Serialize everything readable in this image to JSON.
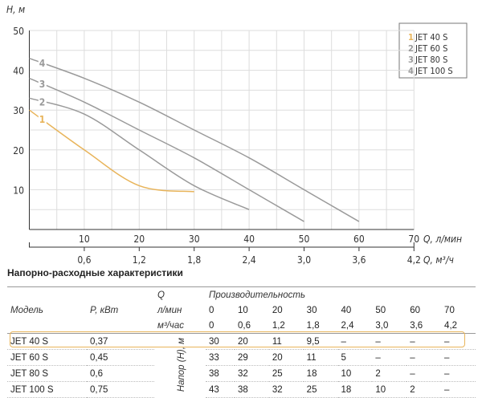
{
  "chart_data": {
    "type": "line",
    "ylabel": "H, м",
    "xlabel": "Q, л/мин",
    "x2label": "Q, м³/ч",
    "ylim": [
      0,
      50
    ],
    "xlim": [
      0,
      70
    ],
    "yticks": [
      "10",
      "20",
      "30",
      "40",
      "50"
    ],
    "xticks": [
      "10",
      "20",
      "30",
      "40",
      "50",
      "60",
      "70"
    ],
    "x2ticks": [
      "0,6",
      "1,2",
      "1,8",
      "2,4",
      "3,0",
      "3,6",
      "4,2"
    ],
    "grid": true,
    "legend_position": "top-right",
    "series": [
      {
        "name": "JET 40 S",
        "label": "1",
        "color": "#e8b45a",
        "x": [
          0,
          10,
          20,
          30
        ],
        "y": [
          30,
          20,
          11,
          9.5
        ]
      },
      {
        "name": "JET 60 S",
        "label": "2",
        "color": "#9a9a9a",
        "x": [
          0,
          10,
          20,
          30,
          40
        ],
        "y": [
          33,
          29,
          20,
          11,
          5
        ]
      },
      {
        "name": "JET 80 S",
        "label": "3",
        "color": "#9a9a9a",
        "x": [
          0,
          10,
          20,
          30,
          40,
          50
        ],
        "y": [
          38,
          32,
          25,
          18,
          10,
          2
        ]
      },
      {
        "name": "JET 100 S",
        "label": "4",
        "color": "#9a9a9a",
        "x": [
          0,
          10,
          20,
          30,
          40,
          50,
          60
        ],
        "y": [
          43,
          38,
          32,
          25,
          18,
          10,
          2
        ]
      }
    ]
  },
  "table": {
    "title": "Напорно-расходные характеристики",
    "col_model": "Модель",
    "col_power": "P, кВт",
    "q_label": "Q",
    "perf_label": "Производительность",
    "unit_lmin": "л/мин",
    "unit_m3h": "м³/час",
    "head_label": "Напор (H), м",
    "lmin": [
      "0",
      "10",
      "20",
      "30",
      "40",
      "50",
      "60",
      "70"
    ],
    "m3h": [
      "0",
      "0,6",
      "1,2",
      "1,8",
      "2,4",
      "3,0",
      "3,6",
      "4,2"
    ],
    "rows": [
      {
        "model": "JET 40 S",
        "power": "0,37",
        "values": [
          "30",
          "20",
          "11",
          "9,5",
          "–",
          "–",
          "–",
          "–"
        ]
      },
      {
        "model": "JET 60 S",
        "power": "0,45",
        "values": [
          "33",
          "29",
          "20",
          "11",
          "5",
          "–",
          "–",
          "–"
        ]
      },
      {
        "model": "JET 80 S",
        "power": "0,6",
        "values": [
          "38",
          "32",
          "25",
          "18",
          "10",
          "2",
          "–",
          "–"
        ]
      },
      {
        "model": "JET 100 S",
        "power": "0,75",
        "values": [
          "43",
          "38",
          "32",
          "25",
          "18",
          "10",
          "2",
          "–"
        ]
      }
    ]
  }
}
